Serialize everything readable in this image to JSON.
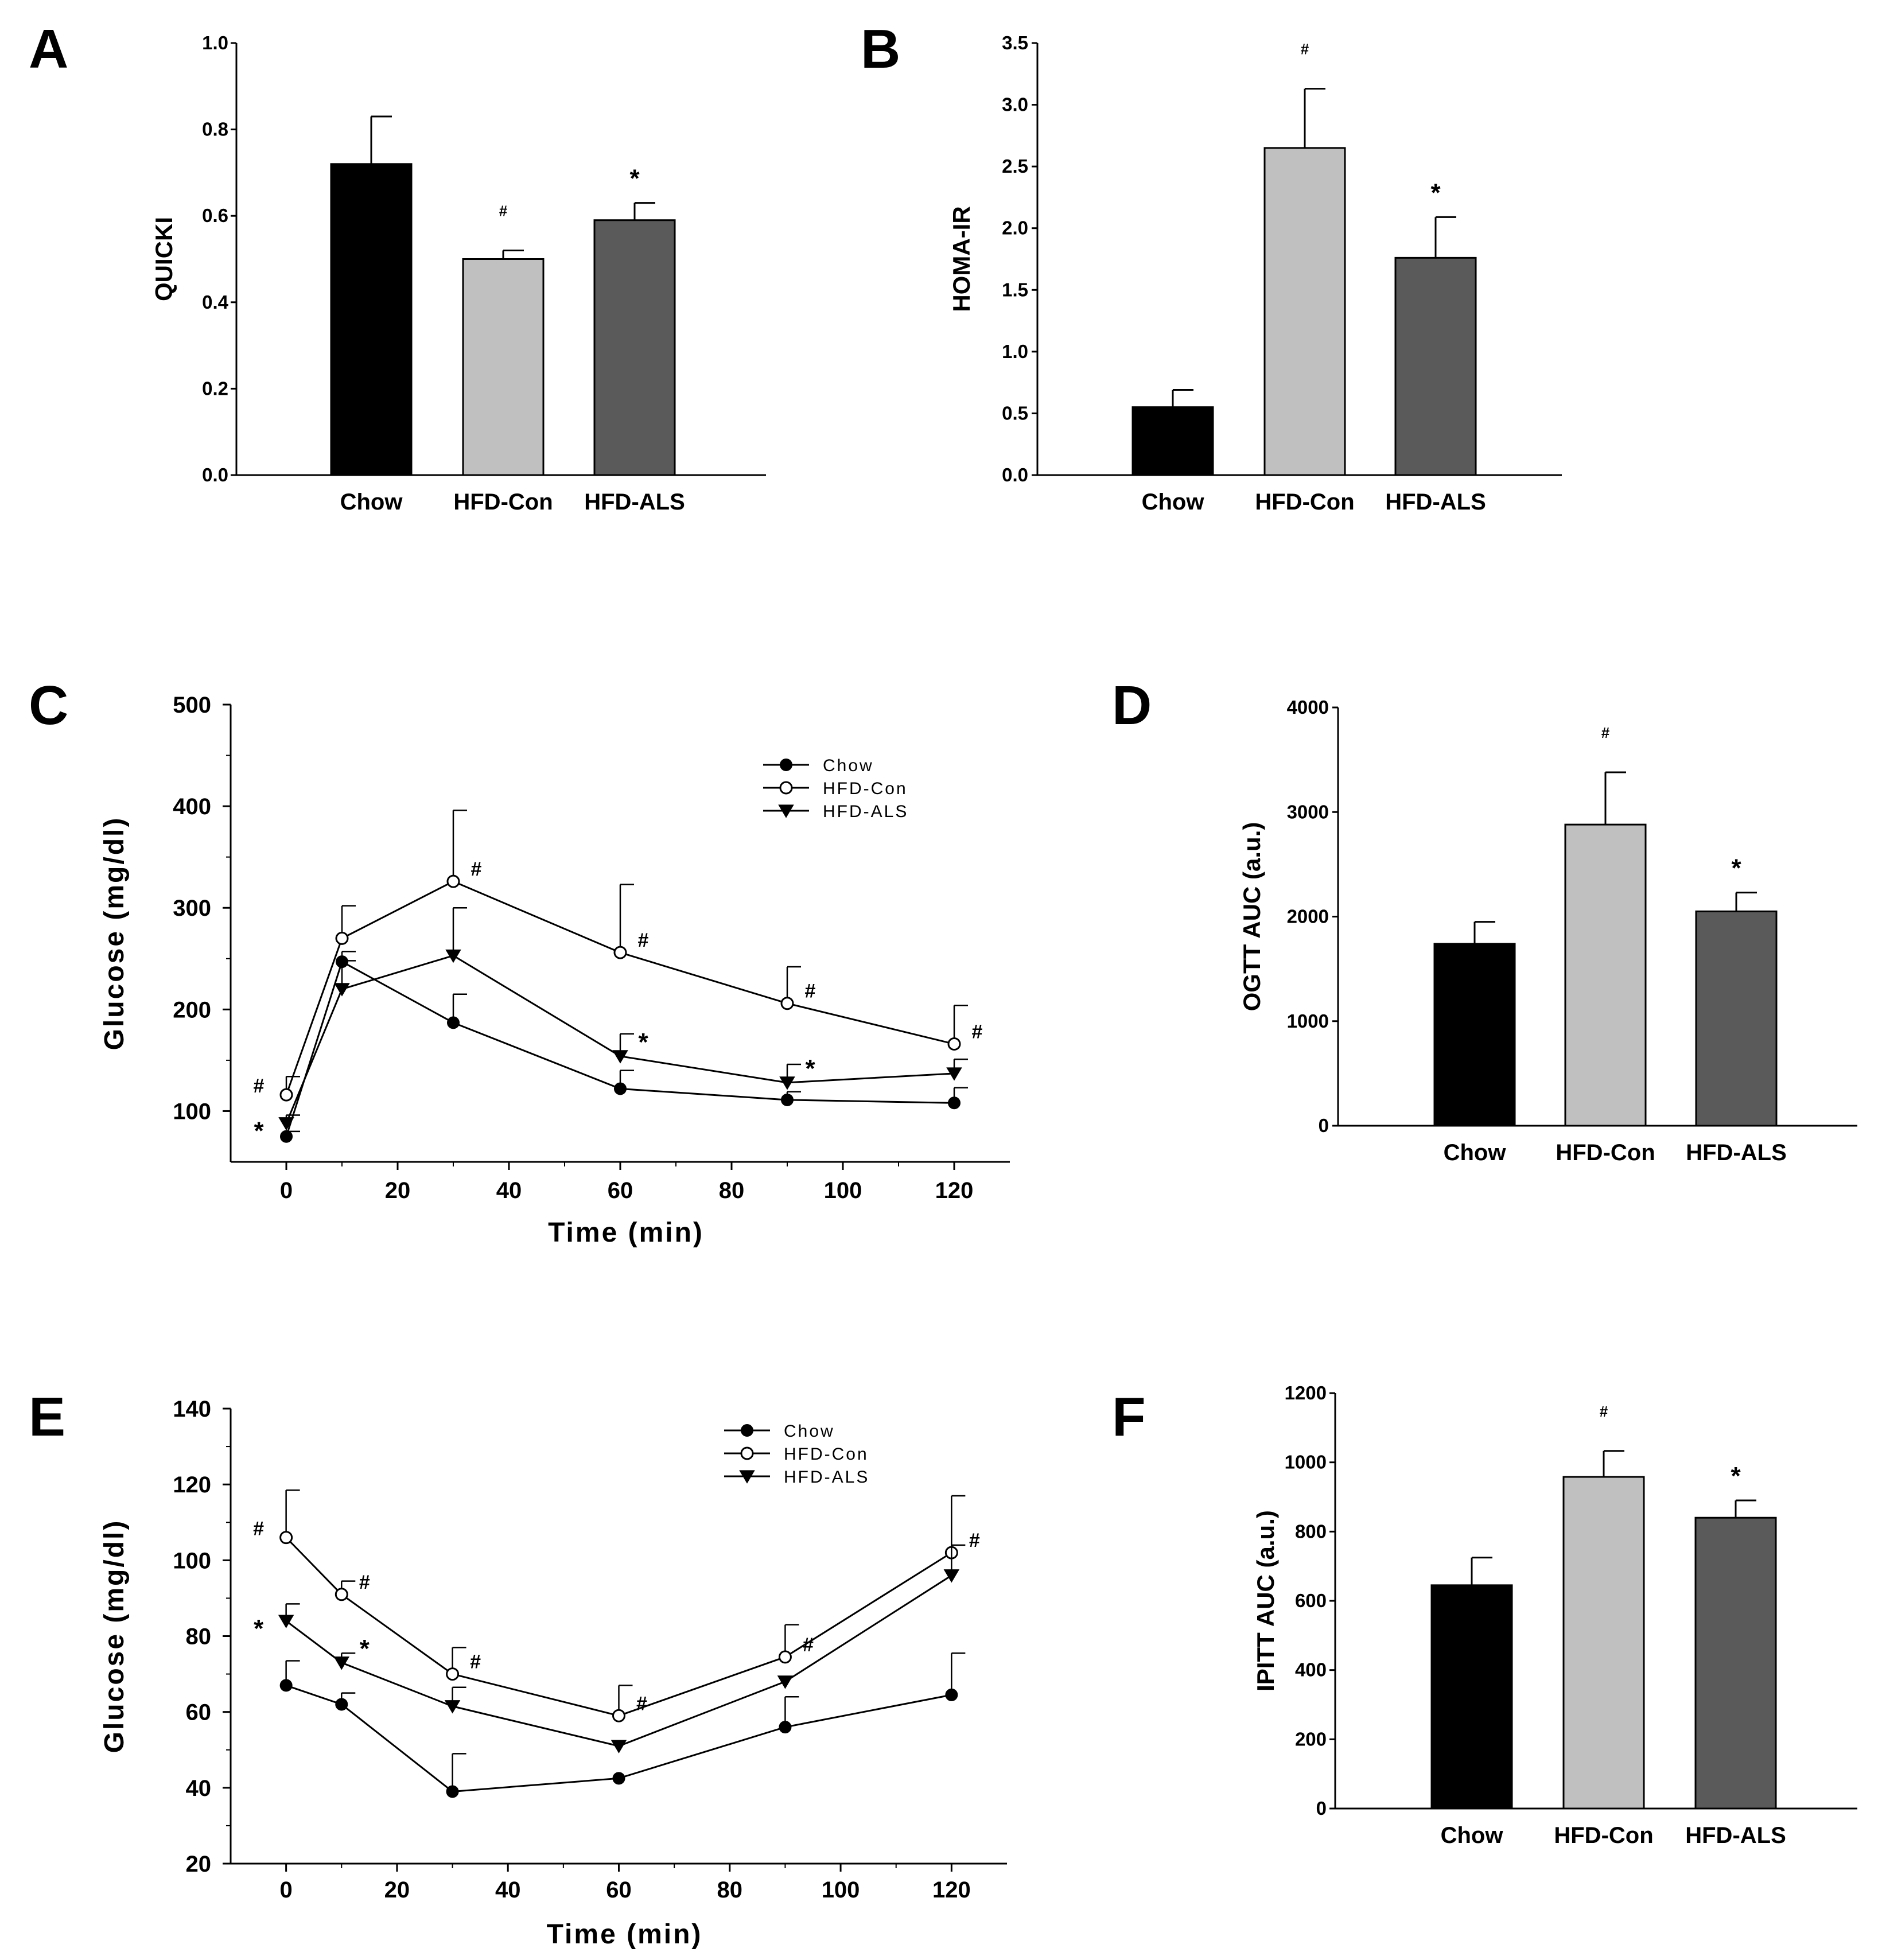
{
  "colors": {
    "Chow": "#000000",
    "HFD-Con": "#c0c0c0",
    "HFD-ALS": "#5a5a5a"
  },
  "chart_data": [
    {
      "panel": "A",
      "type": "bar",
      "ylabel": "QUICKI",
      "ylim": [
        0,
        1.0
      ],
      "yticks": [
        "0.0",
        "0.2",
        "0.4",
        "0.6",
        "0.8",
        "1.0"
      ],
      "categories": [
        "Chow",
        "HFD-Con",
        "HFD-ALS"
      ],
      "values": [
        0.72,
        0.5,
        0.59
      ],
      "errors": [
        0.11,
        0.02,
        0.04
      ],
      "marks": [
        "",
        "#",
        "*"
      ]
    },
    {
      "panel": "B",
      "type": "bar",
      "ylabel": "HOMA-IR",
      "ylim": [
        0,
        3.5
      ],
      "yticks": [
        "0.0",
        "0.5",
        "1.0",
        "1.5",
        "2.0",
        "2.5",
        "3.0",
        "3.5"
      ],
      "categories": [
        "Chow",
        "HFD-Con",
        "HFD-ALS"
      ],
      "values": [
        0.55,
        2.65,
        1.76
      ],
      "errors": [
        0.14,
        0.48,
        0.33
      ],
      "marks": [
        "",
        "#",
        "*"
      ]
    },
    {
      "panel": "C",
      "type": "line",
      "xlabel": "Time (min)",
      "ylabel": "Glucose (mg/dl)",
      "xlim": [
        -10,
        130
      ],
      "ylim": [
        50,
        500
      ],
      "xticks": [
        "0",
        "20",
        "40",
        "60",
        "80",
        "100",
        "120"
      ],
      "yticks": [
        "100",
        "200",
        "300",
        "400",
        "500"
      ],
      "x": [
        0,
        10,
        30,
        60,
        90,
        120
      ],
      "series": [
        {
          "name": "Chow",
          "marker": "filled-circle",
          "values": [
            75,
            247,
            187,
            122,
            111,
            108
          ],
          "errors": [
            5,
            10,
            28,
            18,
            8,
            15
          ]
        },
        {
          "name": "HFD-Con",
          "marker": "open-circle",
          "values": [
            116,
            270,
            326,
            256,
            206,
            166
          ],
          "errors": [
            18,
            32,
            70,
            67,
            36,
            38
          ]
        },
        {
          "name": "HFD-ALS",
          "marker": "filled-triangle",
          "values": [
            88,
            220,
            253,
            154,
            128,
            137
          ],
          "errors": [
            8,
            28,
            47,
            22,
            18,
            14
          ]
        }
      ],
      "annotations": [
        {
          "x": 0,
          "series": "HFD-Con",
          "text": "#"
        },
        {
          "x": 0,
          "series": "HFD-ALS",
          "text": "*"
        },
        {
          "x": 30,
          "series": "HFD-Con",
          "text": "#"
        },
        {
          "x": 60,
          "series": "HFD-Con",
          "text": "#"
        },
        {
          "x": 60,
          "series": "HFD-ALS",
          "text": "*"
        },
        {
          "x": 90,
          "series": "HFD-Con",
          "text": "#"
        },
        {
          "x": 90,
          "series": "HFD-ALS",
          "text": "*"
        },
        {
          "x": 120,
          "series": "HFD-Con",
          "text": "#"
        }
      ],
      "legend": [
        "Chow",
        "HFD-Con",
        "HFD-ALS"
      ],
      "legend_position": "top-right"
    },
    {
      "panel": "D",
      "type": "bar",
      "ylabel": "OGTT AUC (a.u.)",
      "ylim": [
        0,
        4000
      ],
      "yticks": [
        "0",
        "1000",
        "2000",
        "3000",
        "4000"
      ],
      "categories": [
        "Chow",
        "HFD-Con",
        "HFD-ALS"
      ],
      "values": [
        1740,
        2880,
        2050
      ],
      "errors": [
        210,
        500,
        180
      ],
      "marks": [
        "",
        "#",
        "*"
      ]
    },
    {
      "panel": "E",
      "type": "line",
      "xlabel": "Time (min)",
      "ylabel": "Glucose (mg/dl)",
      "xlim": [
        -10,
        130
      ],
      "ylim": [
        20,
        140
      ],
      "xticks": [
        "0",
        "20",
        "40",
        "60",
        "80",
        "100",
        "120"
      ],
      "yticks": [
        "20",
        "40",
        "60",
        "80",
        "100",
        "120",
        "140"
      ],
      "x": [
        0,
        10,
        30,
        60,
        90,
        120
      ],
      "series": [
        {
          "name": "Chow",
          "marker": "filled-circle",
          "values": [
            67,
            62,
            39,
            42.5,
            56,
            64.5
          ],
          "errors": [
            6.5,
            3,
            10,
            0,
            8,
            11
          ]
        },
        {
          "name": "HFD-Con",
          "marker": "open-circle",
          "values": [
            106,
            91,
            70,
            59,
            74.5,
            102
          ],
          "errors": [
            12.5,
            3.5,
            7,
            8,
            8.5,
            15
          ]
        },
        {
          "name": "HFD-ALS",
          "marker": "filled-triangle",
          "values": [
            84,
            73,
            61.5,
            51,
            68,
            96
          ],
          "errors": [
            4.5,
            2.5,
            5,
            0,
            0,
            8
          ]
        }
      ],
      "annotations": [
        {
          "x": 0,
          "series": "HFD-Con",
          "text": "#"
        },
        {
          "x": 0,
          "series": "HFD-ALS",
          "text": "*"
        },
        {
          "x": 10,
          "series": "HFD-Con",
          "text": "#"
        },
        {
          "x": 10,
          "series": "HFD-ALS",
          "text": "*"
        },
        {
          "x": 30,
          "series": "HFD-Con",
          "text": "#"
        },
        {
          "x": 60,
          "series": "HFD-Con",
          "text": "#"
        },
        {
          "x": 90,
          "series": "HFD-Con",
          "text": "#"
        },
        {
          "x": 120,
          "series": "HFD-Con",
          "text": "#"
        }
      ],
      "legend": [
        "Chow",
        "HFD-Con",
        "HFD-ALS"
      ],
      "legend_position": "top-right"
    },
    {
      "panel": "F",
      "type": "bar",
      "ylabel": "IPITT AUC (a.u.)",
      "ylim": [
        0,
        1200
      ],
      "yticks": [
        "0",
        "200",
        "400",
        "600",
        "800",
        "1000",
        "1200"
      ],
      "categories": [
        "Chow",
        "HFD-Con",
        "HFD-ALS"
      ],
      "values": [
        645,
        958,
        840
      ],
      "errors": [
        80,
        75,
        50
      ],
      "marks": [
        "",
        "#",
        "*"
      ]
    }
  ]
}
